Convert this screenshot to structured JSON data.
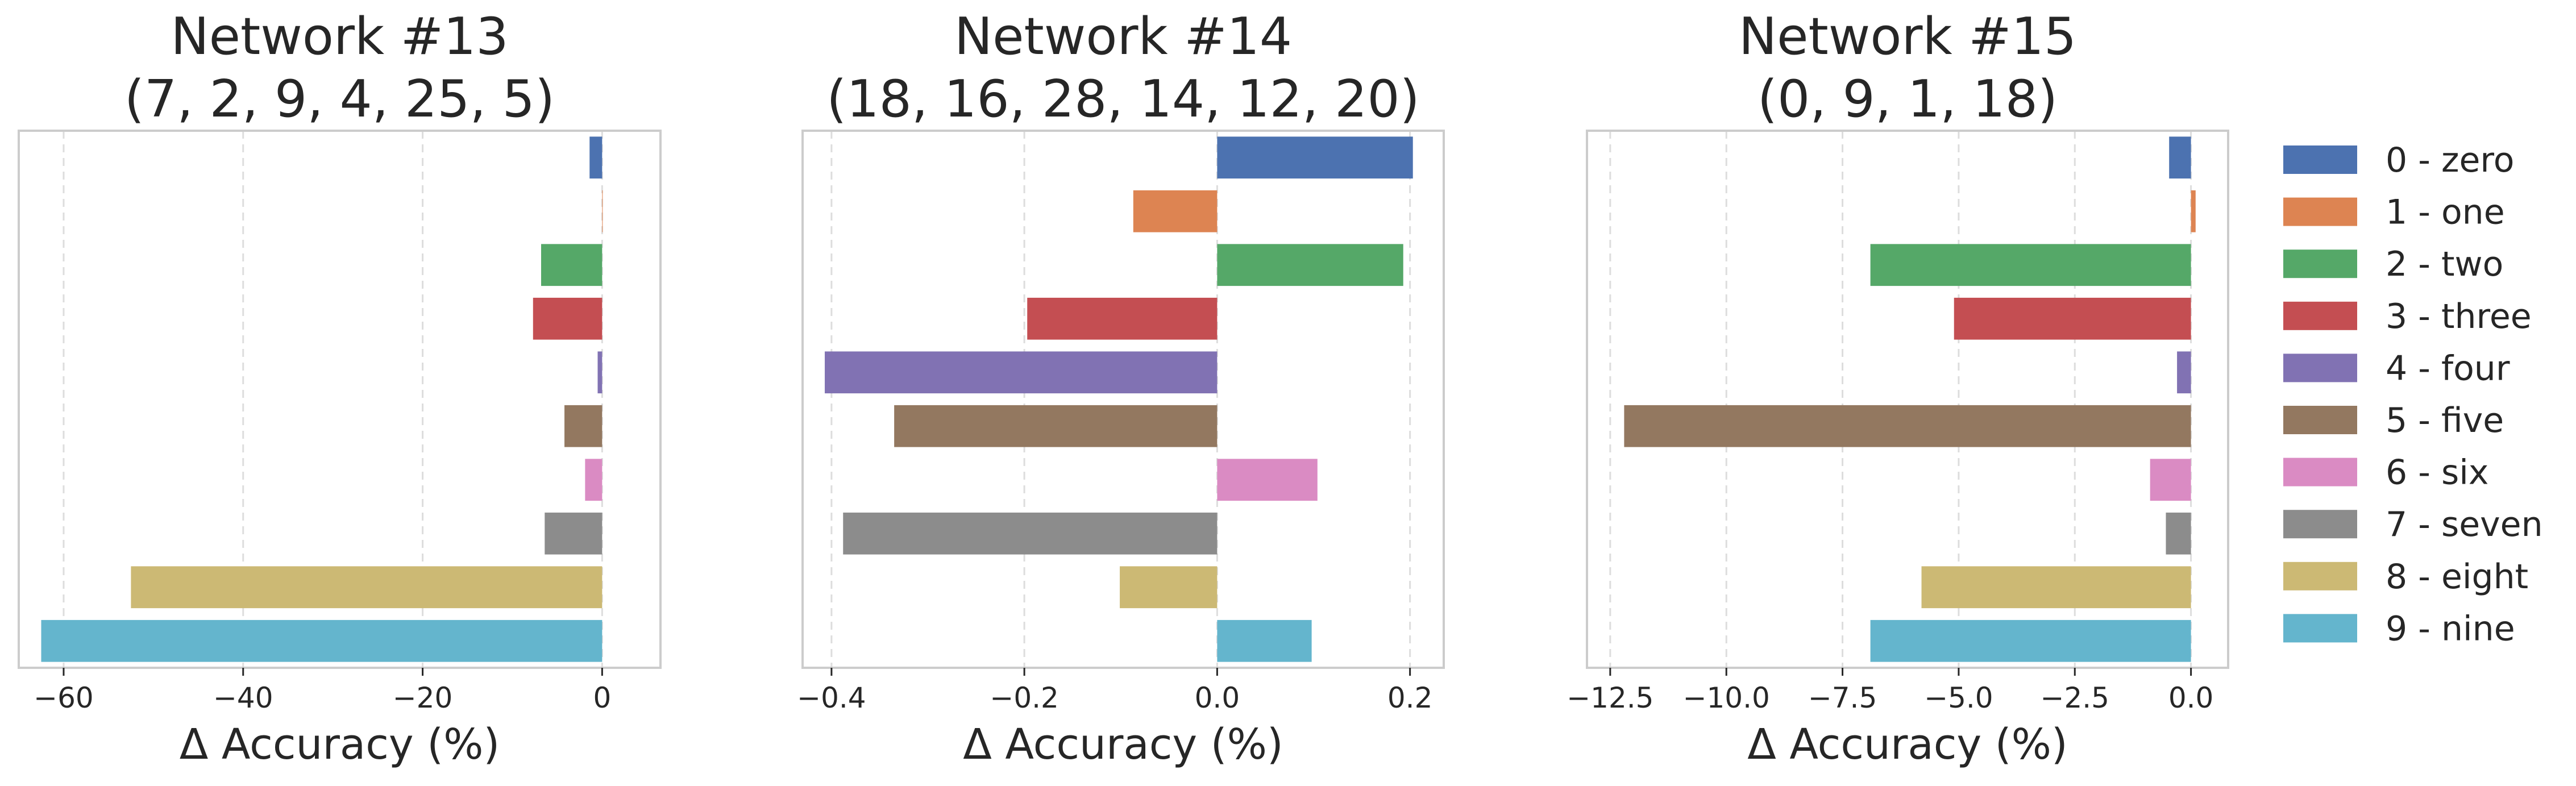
{
  "chart_data": [
    {
      "type": "bar",
      "orientation": "horizontal",
      "title": "Network #13",
      "subtitle": "(7, 2, 9, 4, 25, 5)",
      "xlabel": "Δ Accuracy (%)",
      "xlim": [
        -65,
        6.5
      ],
      "xticks": [
        -60,
        -40,
        -20,
        0
      ],
      "xtick_labels": [
        "−60",
        "−40",
        "−20",
        "0"
      ],
      "categories": [
        "0 - zero",
        "1 - one",
        "2 - two",
        "3 - three",
        "4 - four",
        "5 - five",
        "6 - six",
        "7 - seven",
        "8 - eight",
        "9 - nine"
      ],
      "values": [
        -1.4,
        0.0,
        -6.8,
        -7.7,
        -0.5,
        -4.2,
        -1.9,
        -6.4,
        -52.5,
        -62.5
      ],
      "grid": "vertical dashed"
    },
    {
      "type": "bar",
      "orientation": "horizontal",
      "title": "Network #14",
      "subtitle": "(18, 16, 28, 14, 12, 20)",
      "xlabel": "Δ Accuracy (%)",
      "xlim": [
        -0.43,
        0.235
      ],
      "xticks": [
        -0.4,
        -0.2,
        0.0,
        0.2
      ],
      "xtick_labels": [
        "−0.4",
        "−0.2",
        "0.0",
        "0.2"
      ],
      "categories": [
        "0 - zero",
        "1 - one",
        "2 - two",
        "3 - three",
        "4 - four",
        "5 - five",
        "6 - six",
        "7 - seven",
        "8 - eight",
        "9 - nine"
      ],
      "values": [
        0.203,
        -0.087,
        0.193,
        -0.197,
        -0.407,
        -0.335,
        0.104,
        -0.388,
        -0.101,
        0.098
      ],
      "grid": "vertical dashed"
    },
    {
      "type": "bar",
      "orientation": "horizontal",
      "title": "Network #15",
      "subtitle": "(0, 9, 1, 18)",
      "xlabel": "Δ Accuracy (%)",
      "xlim": [
        -13.0,
        0.8
      ],
      "xticks": [
        -12.5,
        -10.0,
        -7.5,
        -5.0,
        -2.5,
        0.0
      ],
      "xtick_labels": [
        "−12.5",
        "−10.0",
        "−7.5",
        "−5.0",
        "−2.5",
        "0.0"
      ],
      "categories": [
        "0 - zero",
        "1 - one",
        "2 - two",
        "3 - three",
        "4 - four",
        "5 - five",
        "6 - six",
        "7 - seven",
        "8 - eight",
        "9 - nine"
      ],
      "values": [
        -0.47,
        0.1,
        -6.9,
        -5.1,
        -0.3,
        -12.2,
        -0.88,
        -0.54,
        -5.8,
        -6.9
      ],
      "grid": "vertical dashed"
    }
  ],
  "legend": {
    "placement": "right",
    "entries": [
      {
        "label": "0 - zero",
        "color": "#4c72b0"
      },
      {
        "label": "1 - one",
        "color": "#dd8452"
      },
      {
        "label": "2 - two",
        "color": "#55a868"
      },
      {
        "label": "3 - three",
        "color": "#c44e52"
      },
      {
        "label": "4 - four",
        "color": "#8172b3"
      },
      {
        "label": "5 - five",
        "color": "#937860"
      },
      {
        "label": "6 - six",
        "color": "#da8bc3"
      },
      {
        "label": "7 - seven",
        "color": "#8c8c8c"
      },
      {
        "label": "8 - eight",
        "color": "#ccb974"
      },
      {
        "label": "9 - nine",
        "color": "#64b5cd"
      }
    ]
  }
}
